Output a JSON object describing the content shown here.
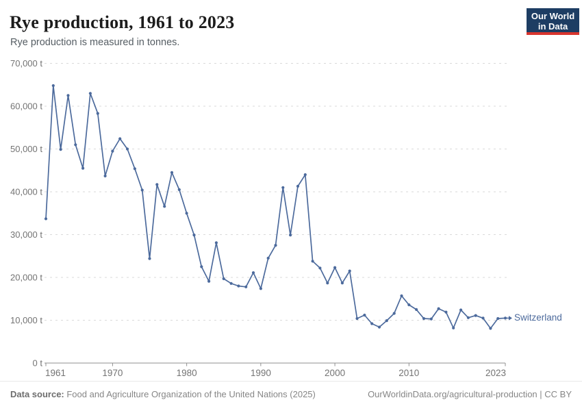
{
  "header": {
    "title": "Rye production, 1961 to 2023",
    "subtitle": "Rye production is measured in tonnes.",
    "logo": {
      "line1": "Our World",
      "line2": "in Data",
      "bg_color": "#1d3d63",
      "accent_color": "#d8352e"
    }
  },
  "chart_data": {
    "type": "line",
    "title": "Rye production, 1961 to 2023",
    "subtitle": "Rye production is measured in tonnes.",
    "unit": "tonnes",
    "xlabel": "",
    "ylabel": "",
    "ylim": [
      0,
      70000
    ],
    "ytick_values": [
      0,
      10000,
      20000,
      30000,
      40000,
      50000,
      60000,
      70000
    ],
    "ytick_labels": [
      "0 t",
      "10,000 t",
      "20,000 t",
      "30,000 t",
      "40,000 t",
      "50,000 t",
      "60,000 t",
      "70,000 t"
    ],
    "xticks": [
      1961,
      1970,
      1980,
      1990,
      2000,
      2010,
      2023
    ],
    "grid": "horizontal-dashed",
    "grid_color": "#d9d9d9",
    "axis_color": "#8f8f8f",
    "tick_label_color": "#737373",
    "legend_position": "end-of-line",
    "series": [
      {
        "name": "Switzerland",
        "color": "#4c6a9c",
        "x": [
          1961,
          1962,
          1963,
          1964,
          1965,
          1966,
          1967,
          1968,
          1969,
          1970,
          1971,
          1972,
          1973,
          1974,
          1975,
          1976,
          1977,
          1978,
          1979,
          1980,
          1981,
          1982,
          1983,
          1984,
          1985,
          1986,
          1987,
          1988,
          1989,
          1990,
          1991,
          1992,
          1993,
          1994,
          1995,
          1996,
          1997,
          1998,
          1999,
          2000,
          2001,
          2002,
          2003,
          2004,
          2005,
          2006,
          2007,
          2008,
          2009,
          2010,
          2011,
          2012,
          2013,
          2014,
          2015,
          2016,
          2017,
          2018,
          2019,
          2020,
          2021,
          2022,
          2023
        ],
        "values": [
          33700,
          64800,
          49900,
          62500,
          51000,
          45500,
          63000,
          58300,
          43700,
          49500,
          52400,
          50000,
          45400,
          40400,
          24400,
          41700,
          36600,
          44500,
          40500,
          35000,
          29900,
          22500,
          19100,
          28100,
          19700,
          18600,
          18000,
          17800,
          21100,
          17400,
          24500,
          27500,
          41000,
          29900,
          41300,
          44000,
          23800,
          22200,
          18700,
          22300,
          18700,
          21500,
          10400,
          11200,
          9200,
          8400,
          9900,
          11600,
          15700,
          13600,
          12500,
          10400,
          10300,
          12700,
          11900,
          8200,
          12400,
          10600,
          11100,
          10500,
          8100,
          10400,
          10500
        ]
      }
    ]
  },
  "footer": {
    "datasource_label": "Data source:",
    "datasource_text": " Food and Agriculture Organization of the United Nations (2025)",
    "credit": "OurWorldinData.org/agricultural-production | CC BY"
  }
}
